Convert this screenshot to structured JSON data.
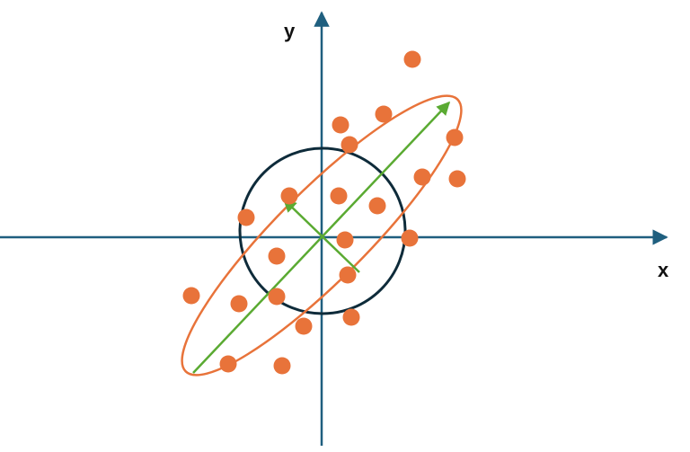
{
  "diagram": {
    "x_axis_label": "x",
    "y_axis_label": "y",
    "colors": {
      "axis": "#1f5f7f",
      "circle": "#0e2b3a",
      "ellipse": "#e8733a",
      "points": "#e8733a",
      "vectors": "#5aaa32",
      "label": "#111111"
    }
  }
}
